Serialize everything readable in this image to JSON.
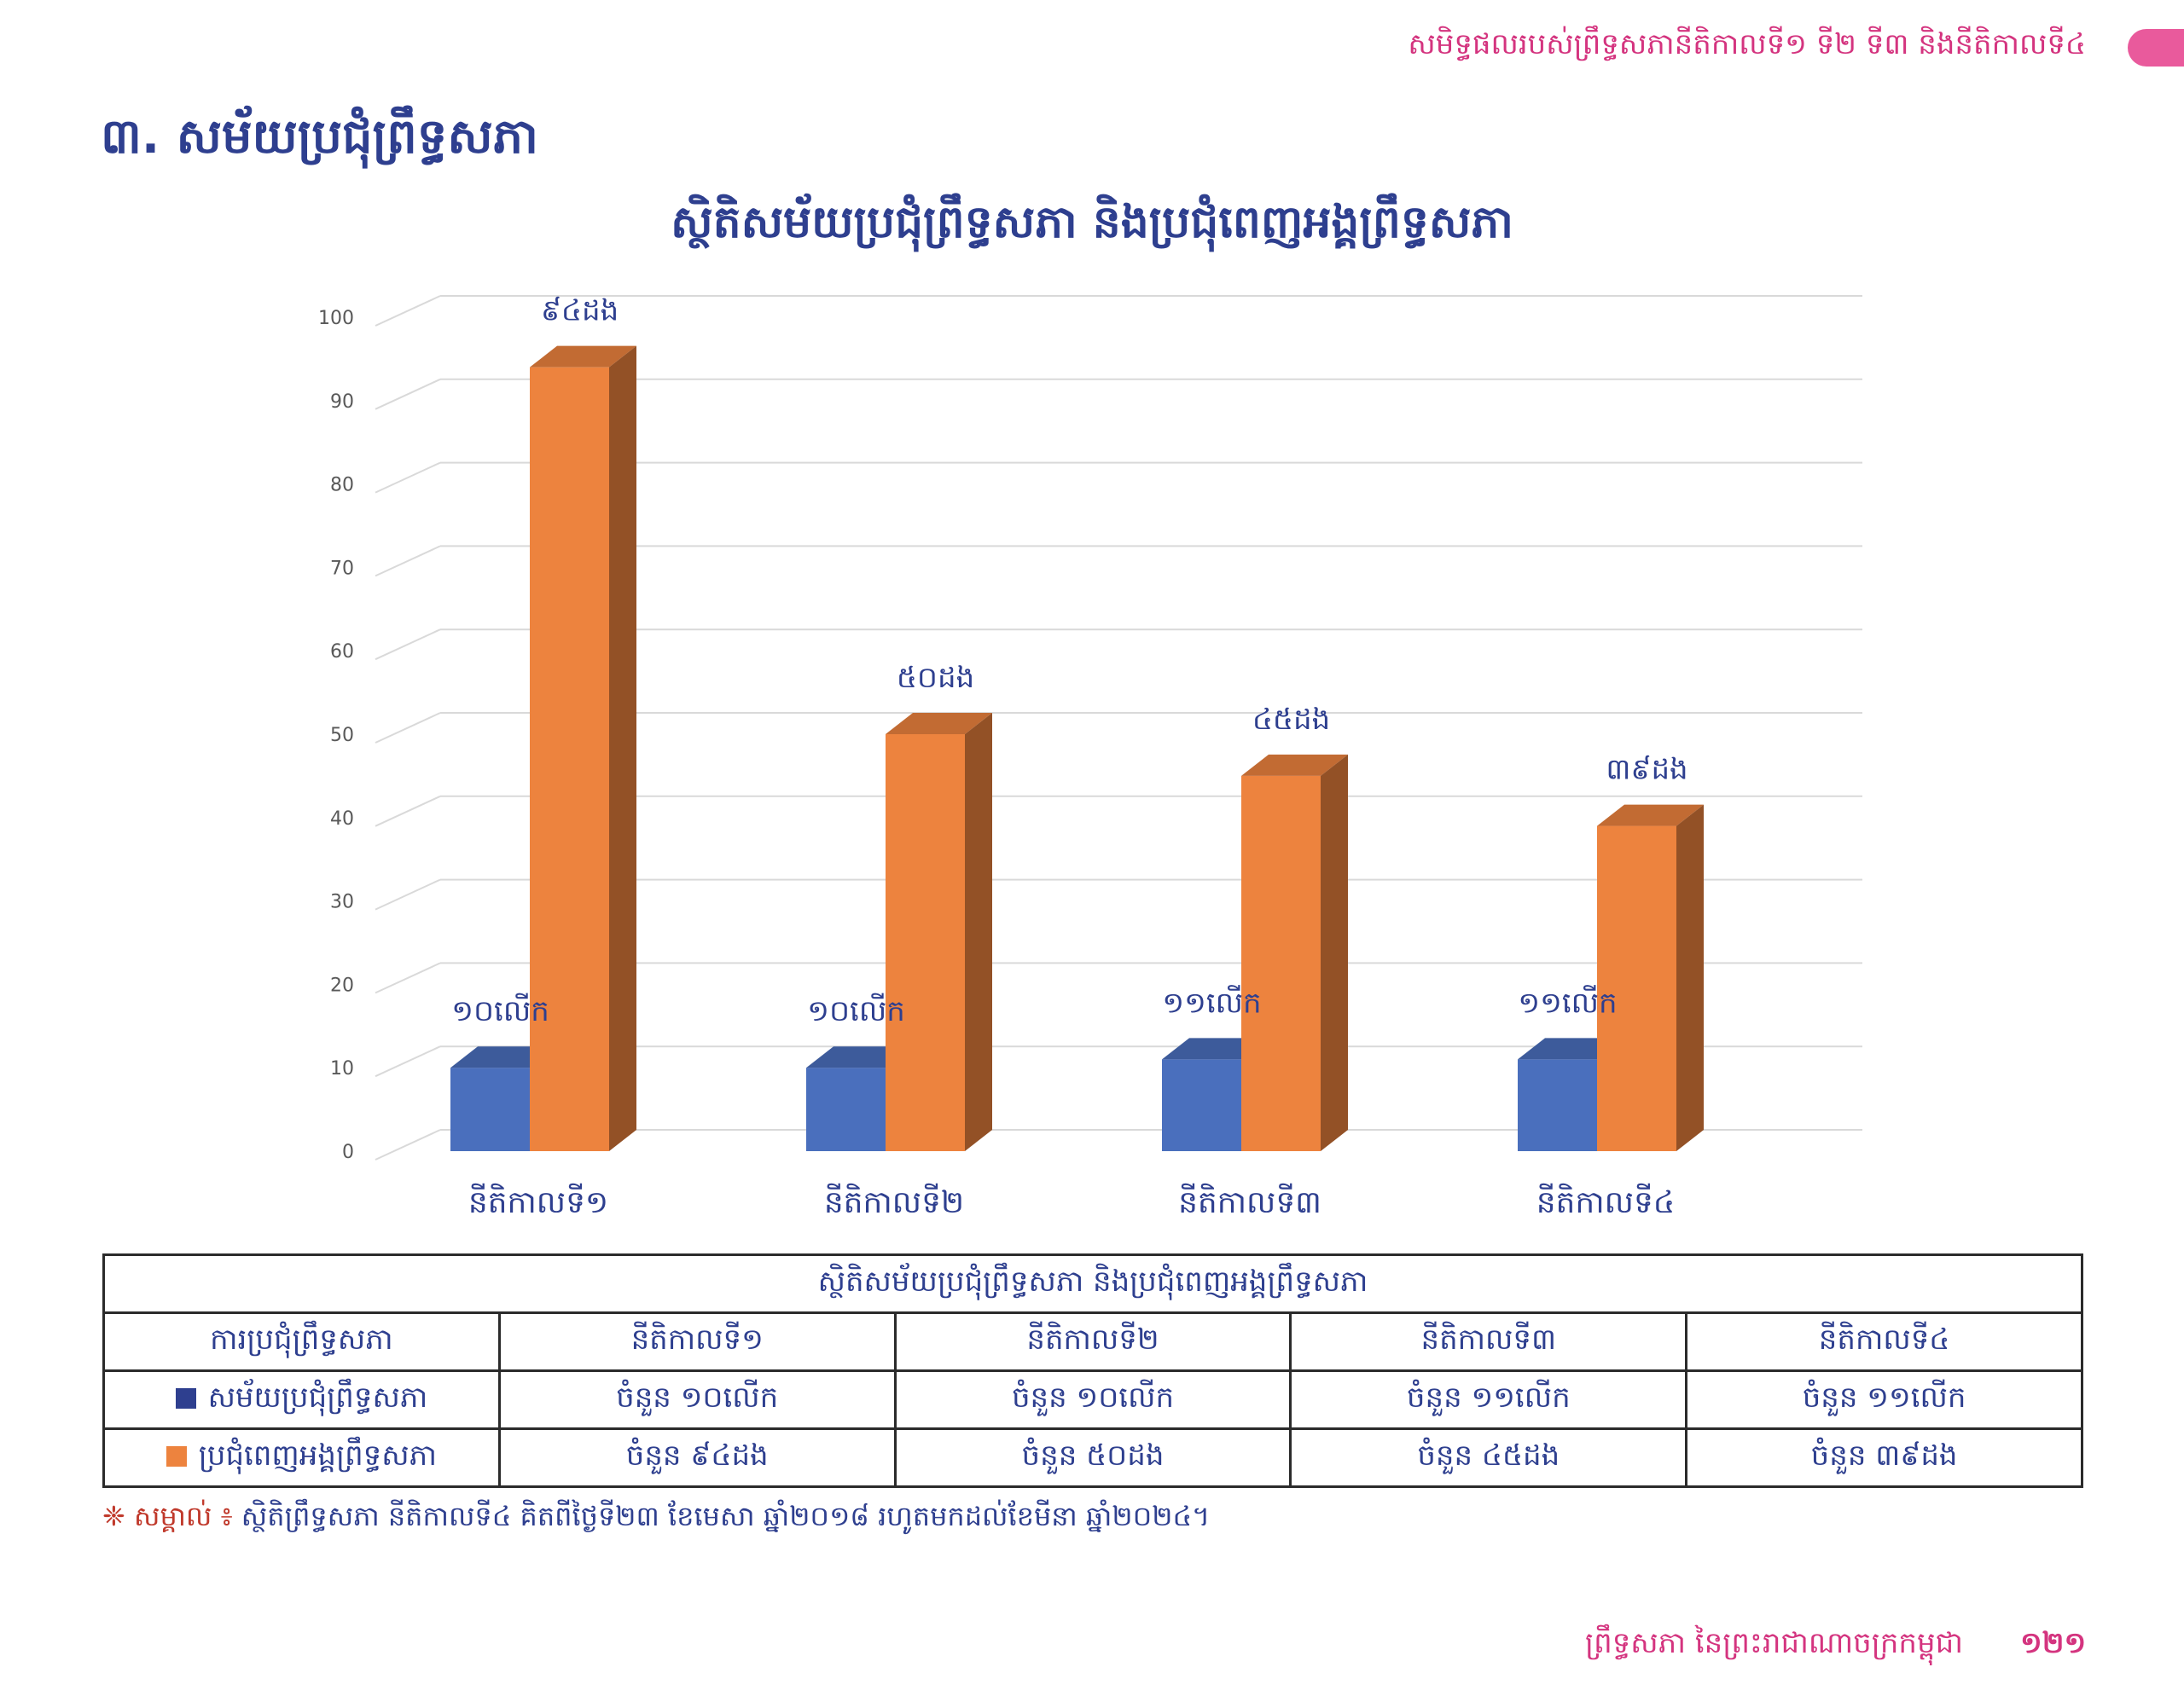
{
  "header": {
    "running_title": "សមិទ្ធផលរបស់ព្រឹទ្ធសភានីតិកាលទី១ ទី២ ទី៣ និងនីតិកាលទី៤"
  },
  "section": {
    "title": "៣. សម័យប្រជុំព្រឹទ្ធសភា"
  },
  "chart_data": {
    "type": "bar",
    "title": "ស្ថិតិសម័យប្រជុំព្រឹទ្ធសភា និងប្រជុំពេញអង្គព្រឹទ្ធសភា",
    "categories": [
      "នីតិកាលទី១",
      "នីតិកាលទី២",
      "នីតិកាលទី៣",
      "នីតិកាលទី៤"
    ],
    "series": [
      {
        "name": "សម័យប្រជុំព្រឹទ្ធសភា",
        "values": [
          10,
          10,
          11,
          11
        ],
        "labels": [
          "១០លើក",
          "១០លើក",
          "១១លើក",
          "១១លើក"
        ],
        "color": "#4a6fbd"
      },
      {
        "name": "ប្រជុំពេញអង្គព្រឹទ្ធសភា",
        "values": [
          94,
          50,
          45,
          39
        ],
        "labels": [
          "៩៤ដង",
          "៥០ដង",
          "៤៥ដង",
          "៣៩ដង"
        ],
        "color": "#ed833e"
      }
    ],
    "ylim": [
      0,
      100
    ],
    "yticks": [
      0,
      10,
      20,
      30,
      40,
      50,
      60,
      70,
      80,
      90,
      100
    ],
    "grid": true,
    "style": "3d-column"
  },
  "table": {
    "title": "ស្ថិតិសម័យប្រជុំព្រឹទ្ធសភា និងប្រជុំពេញអង្គព្រឹទ្ធសភា",
    "headers": [
      "ការប្រជុំព្រឹទ្ធសភា",
      "នីតិកាលទី១",
      "នីតិកាលទី២",
      "នីតិកាលទី៣",
      "នីតិកាលទី៤"
    ],
    "rows": [
      {
        "label": "សម័យប្រជុំព្រឹទ្ធសភា",
        "color": "#2e3f8f",
        "cells": [
          "ចំនួន ១០លើក",
          "ចំនួន ១០លើក",
          "ចំនួន ១១លើក",
          "ចំនួន ១១លើក"
        ]
      },
      {
        "label": "ប្រជុំពេញអង្គព្រឹទ្ធសភា",
        "color": "#ed833e",
        "cells": [
          "ចំនួន ៩៤ដង",
          "ចំនួន ៥០ដង",
          "ចំនួន ៤៥ដង",
          "ចំនួន ៣៩ដង"
        ]
      }
    ]
  },
  "note": {
    "mark": "❈ សម្គាល់ ៖",
    "text": "ស្ថិតិព្រឹទ្ធសភា នីតិកាលទី៤ គិតពីថ្ងៃទី២៣ ខែមេសា ឆ្នាំ២០១៨ រហូតមកដល់ខែមីនា ឆ្នាំ២០២៤។"
  },
  "footer": {
    "text": "ព្រឹទ្ធសភា នៃព្រះរាជាណាចក្រកម្ពុជា",
    "page_number": "១២១"
  }
}
